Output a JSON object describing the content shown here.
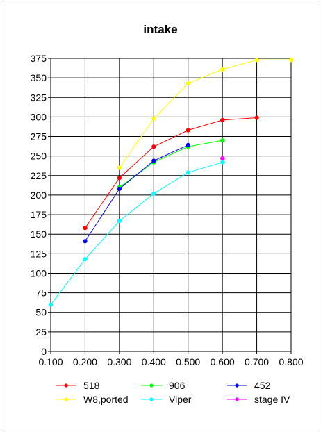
{
  "chart_data": {
    "type": "line",
    "title": "intake",
    "xlabel": "",
    "ylabel": "",
    "xlim": [
      0.1,
      0.8
    ],
    "ylim": [
      0,
      375
    ],
    "x_ticks": [
      "0.100",
      "0.200",
      "0.300",
      "0.400",
      "0.500",
      "0.600",
      "0.700",
      "0.800"
    ],
    "y_ticks": [
      "0",
      "25",
      "50",
      "75",
      "100",
      "125",
      "150",
      "175",
      "200",
      "225",
      "250",
      "275",
      "300",
      "325",
      "350",
      "375"
    ],
    "grid": true,
    "legend_position": "bottom",
    "series": [
      {
        "name": "518",
        "color": "#ff0000",
        "x": [
          0.2,
          0.3,
          0.4,
          0.5,
          0.6,
          0.7
        ],
        "y": [
          158,
          222,
          262,
          283,
          296,
          299
        ]
      },
      {
        "name": "906",
        "color": "#00ff00",
        "x": [
          0.3,
          0.4,
          0.5,
          0.6
        ],
        "y": [
          210,
          242,
          262,
          270
        ]
      },
      {
        "name": "452",
        "color": "#0000ff",
        "x": [
          0.2,
          0.3,
          0.4,
          0.5
        ],
        "y": [
          141,
          208,
          244,
          264
        ]
      },
      {
        "name": "W8,ported",
        "color": "#ffff00",
        "x": [
          0.3,
          0.4,
          0.5,
          0.6,
          0.7,
          0.8
        ],
        "y": [
          235,
          298,
          343,
          361,
          373,
          373
        ]
      },
      {
        "name": "Viper",
        "color": "#00ffff",
        "x": [
          0.1,
          0.2,
          0.3,
          0.4,
          0.5,
          0.6
        ],
        "y": [
          60,
          118,
          167,
          202,
          229,
          242
        ]
      },
      {
        "name": "stage IV",
        "color": "#ff00ff",
        "x": [
          0.6
        ],
        "y": [
          247
        ]
      }
    ]
  }
}
